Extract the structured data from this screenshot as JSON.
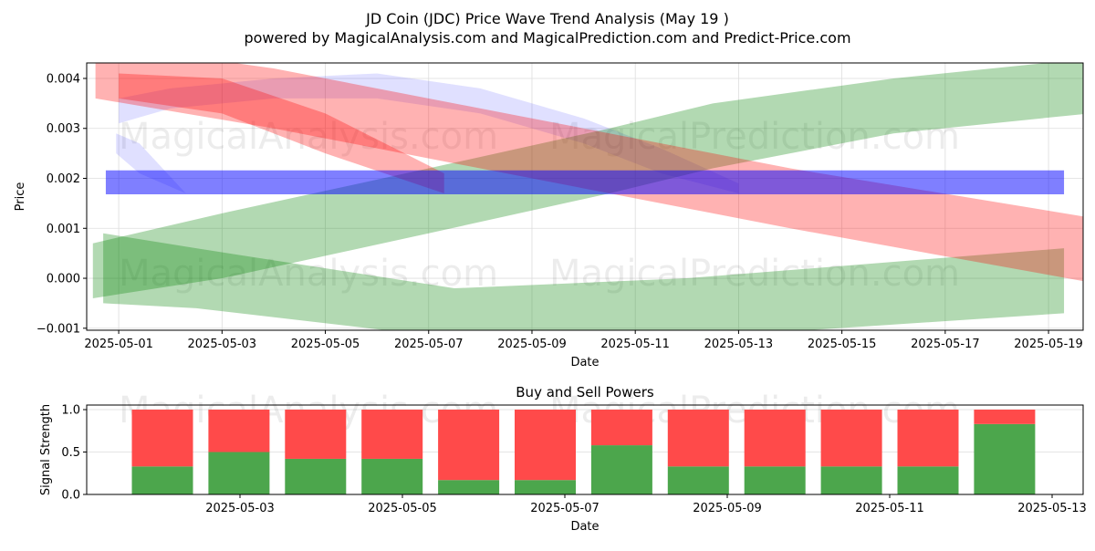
{
  "title": "JD Coin (JDC) Price Wave Trend Analysis (May 19 )",
  "subtitle": "powered by MagicalAnalysis.com and MagicalPrediction.com and Predict-Price.com",
  "watermarks": [
    "MagicalAnalysis.com",
    "MagicalPrediction.com"
  ],
  "colors": {
    "green": "#008000",
    "red": "#ff0000",
    "blue": "#0000ff",
    "buy": "#4ca64c",
    "sell": "#ff4a4a"
  },
  "chart_data": [
    {
      "type": "area",
      "title": "",
      "xlabel": "Date",
      "ylabel": "Price",
      "xlim_days_from_2025_05_01": [
        -0.62,
        18.67
      ],
      "ylim": [
        -0.00104,
        0.00431
      ],
      "grid": true,
      "x_ticks": [
        {
          "day": 0,
          "label": "2025-05-01"
        },
        {
          "day": 2,
          "label": "2025-05-03"
        },
        {
          "day": 4,
          "label": "2025-05-05"
        },
        {
          "day": 6,
          "label": "2025-05-07"
        },
        {
          "day": 8,
          "label": "2025-05-09"
        },
        {
          "day": 10,
          "label": "2025-05-11"
        },
        {
          "day": 12,
          "label": "2025-05-13"
        },
        {
          "day": 14,
          "label": "2025-05-15"
        },
        {
          "day": 16,
          "label": "2025-05-17"
        },
        {
          "day": 18,
          "label": "2025-05-19"
        }
      ],
      "y_ticks": [
        {
          "value": 0.004,
          "label": "0.004"
        },
        {
          "value": 0.003,
          "label": "0.003"
        },
        {
          "value": 0.002,
          "label": "0.002"
        },
        {
          "value": 0.001,
          "label": "0.001"
        },
        {
          "value": 0.0,
          "label": "0.000"
        },
        {
          "value": -0.001,
          "label": "−0.001"
        }
      ],
      "bands": [
        {
          "name": "lavender-arc",
          "color": "blue",
          "opacity": 0.12,
          "x": [
            0,
            1,
            3,
            5,
            7,
            9,
            10.5,
            12
          ],
          "upper": [
            0.0036,
            0.0038,
            0.004,
            0.0041,
            0.0038,
            0.0032,
            0.0026,
            0.0019
          ],
          "lower": [
            0.0031,
            0.0034,
            0.0036,
            0.0036,
            0.0033,
            0.0027,
            0.0021,
            0.0017
          ]
        },
        {
          "name": "lavender-left",
          "color": "blue",
          "opacity": 0.12,
          "x": [
            -0.05,
            0.4,
            1.3
          ],
          "upper": [
            0.0029,
            0.0027,
            0.0017
          ],
          "lower": [
            0.0025,
            0.0021,
            0.0017
          ]
        },
        {
          "name": "green-rising",
          "color": "green",
          "opacity": 0.3,
          "x": [
            -0.5,
            2,
            6,
            9.5,
            11.5,
            15,
            18.8
          ],
          "upper": [
            0.0007,
            0.0013,
            0.0022,
            0.003,
            0.0035,
            0.004,
            0.0044
          ],
          "lower": [
            -0.0004,
            0.0,
            0.0009,
            0.0017,
            0.0022,
            0.0029,
            0.0033
          ]
        },
        {
          "name": "green-lower",
          "color": "green",
          "opacity": 0.3,
          "x": [
            -0.3,
            1.5,
            6.5,
            11,
            18.3
          ],
          "upper": [
            0.0009,
            0.0006,
            -0.0002,
            0.0,
            0.0006
          ],
          "lower": [
            -0.0005,
            -0.0006,
            -0.0012,
            -0.0012,
            -0.0007
          ]
        },
        {
          "name": "red-long",
          "color": "red",
          "opacity": 0.3,
          "x": [
            -0.45,
            3,
            8,
            13,
            18.9
          ],
          "upper": [
            0.0047,
            0.0042,
            0.0032,
            0.0022,
            0.0012
          ],
          "lower": [
            0.0036,
            0.003,
            0.002,
            0.001,
            -0.0001
          ]
        },
        {
          "name": "red-short",
          "color": "red",
          "opacity": 0.3,
          "x": [
            0,
            2,
            4,
            6.3
          ],
          "upper": [
            0.0041,
            0.004,
            0.0033,
            0.0021
          ],
          "lower": [
            0.0036,
            0.0033,
            0.0025,
            0.0017
          ]
        },
        {
          "name": "blue-level",
          "color": "blue",
          "opacity": 0.5,
          "x": [
            -0.25,
            18.3
          ],
          "upper": [
            0.00216,
            0.00216
          ],
          "lower": [
            0.00168,
            0.00168
          ]
        }
      ]
    },
    {
      "type": "bar",
      "title": "Buy and Sell Powers",
      "xlabel": "Date",
      "ylabel": "Signal Strength",
      "ylim": [
        0,
        1.054
      ],
      "grid": true,
      "x_ticks": [
        "2025-05-03",
        "2025-05-05",
        "2025-05-07",
        "2025-05-09",
        "2025-05-11",
        "2025-05-13"
      ],
      "y_ticks": [
        "0.0",
        "0.5",
        "1.0"
      ],
      "series": [
        {
          "name": "Buy",
          "color": "buy",
          "values": [
            0.33,
            0.5,
            0.42,
            0.42,
            0.17,
            0.17,
            0.58,
            0.33,
            0.33,
            0.33,
            0.33,
            0.83
          ]
        },
        {
          "name": "Sell",
          "color": "sell",
          "values": [
            0.67,
            0.5,
            0.58,
            0.58,
            0.83,
            0.83,
            0.42,
            0.67,
            0.67,
            0.67,
            0.67,
            0.17
          ]
        }
      ]
    }
  ]
}
